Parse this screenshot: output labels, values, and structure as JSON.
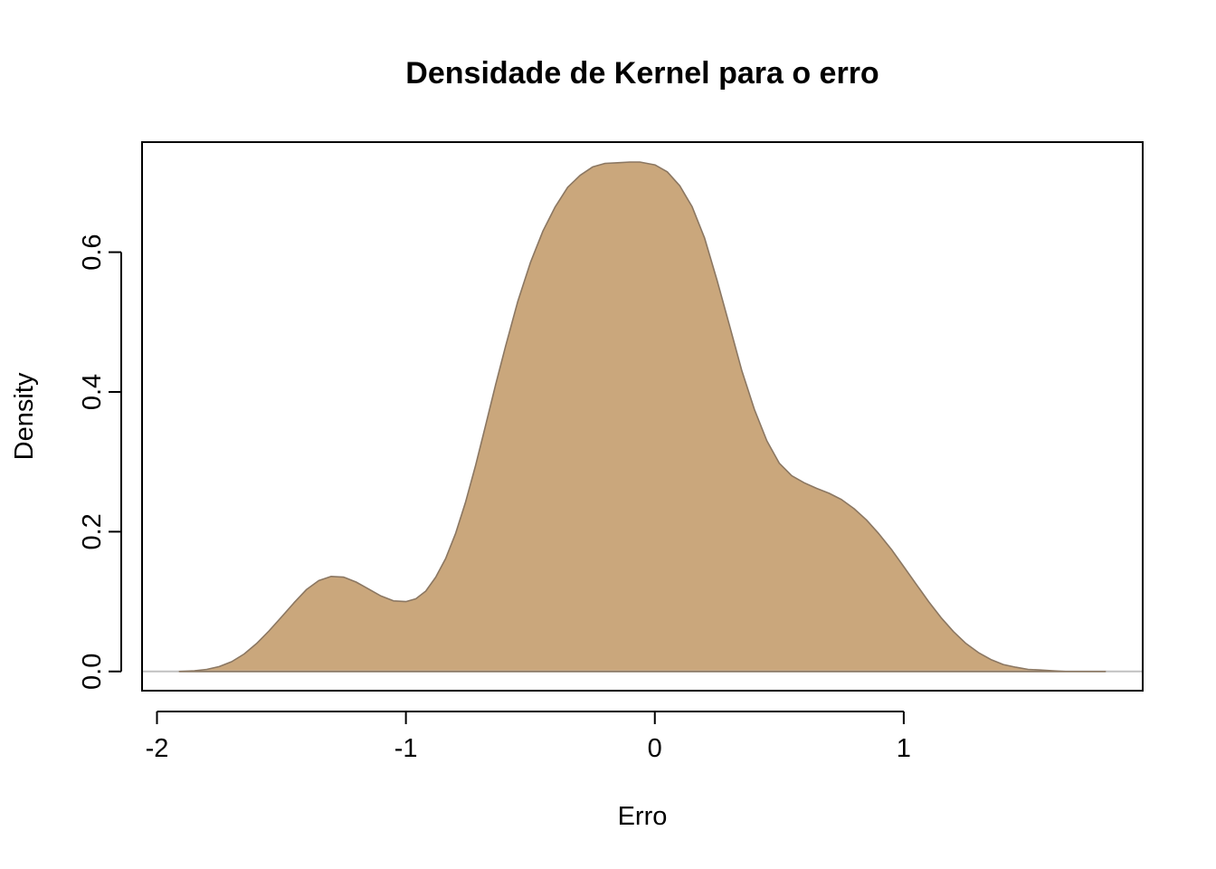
{
  "chart_data": {
    "type": "area",
    "title": "Densidade de Kernel para o erro",
    "xlabel": "Erro",
    "ylabel": "Density",
    "xlim": [
      -2.06,
      1.96
    ],
    "ylim": [
      -0.0275,
      0.7575
    ],
    "x_ticks": [
      -2,
      -1,
      0,
      1
    ],
    "x_tick_labels": [
      "-2",
      "-1",
      "0",
      "1"
    ],
    "y_ticks": [
      0.0,
      0.2,
      0.4,
      0.6
    ],
    "y_tick_labels": [
      "0.0",
      "0.2",
      "0.4",
      "0.6"
    ],
    "grid": false,
    "legend": "none",
    "baseline": 0.0,
    "colors": {
      "fill": "#caa77c",
      "stroke": "#8b7762",
      "baseline": "#c0c0c0",
      "axis": "#000000"
    },
    "series": [
      {
        "x": [
          -1.91,
          -1.85,
          -1.8,
          -1.75,
          -1.7,
          -1.65,
          -1.6,
          -1.55,
          -1.5,
          -1.45,
          -1.4,
          -1.35,
          -1.3,
          -1.25,
          -1.2,
          -1.15,
          -1.1,
          -1.05,
          -1.0,
          -0.96,
          -0.92,
          -0.88,
          -0.84,
          -0.8,
          -0.76,
          -0.72,
          -0.68,
          -0.64,
          -0.6,
          -0.55,
          -0.5,
          -0.45,
          -0.4,
          -0.35,
          -0.3,
          -0.25,
          -0.2,
          -0.15,
          -0.1,
          -0.06,
          0.0,
          0.05,
          0.1,
          0.15,
          0.2,
          0.25,
          0.3,
          0.35,
          0.4,
          0.45,
          0.5,
          0.55,
          0.6,
          0.65,
          0.7,
          0.75,
          0.8,
          0.85,
          0.9,
          0.95,
          1.0,
          1.05,
          1.1,
          1.15,
          1.2,
          1.25,
          1.3,
          1.35,
          1.4,
          1.45,
          1.5,
          1.55,
          1.6,
          1.65,
          1.7,
          1.75,
          1.81
        ],
        "y": [
          0.0,
          0.001,
          0.003,
          0.007,
          0.014,
          0.025,
          0.04,
          0.058,
          0.078,
          0.098,
          0.117,
          0.13,
          0.136,
          0.135,
          0.128,
          0.118,
          0.108,
          0.101,
          0.1,
          0.104,
          0.115,
          0.135,
          0.162,
          0.198,
          0.243,
          0.295,
          0.352,
          0.41,
          0.465,
          0.53,
          0.585,
          0.63,
          0.665,
          0.693,
          0.71,
          0.722,
          0.727,
          0.728,
          0.729,
          0.729,
          0.725,
          0.715,
          0.695,
          0.665,
          0.62,
          0.56,
          0.495,
          0.43,
          0.375,
          0.33,
          0.298,
          0.28,
          0.27,
          0.262,
          0.255,
          0.246,
          0.233,
          0.217,
          0.197,
          0.175,
          0.15,
          0.125,
          0.1,
          0.077,
          0.057,
          0.04,
          0.027,
          0.017,
          0.01,
          0.006,
          0.003,
          0.002,
          0.001,
          0.0,
          0.0,
          0.0,
          0.0
        ]
      }
    ]
  }
}
